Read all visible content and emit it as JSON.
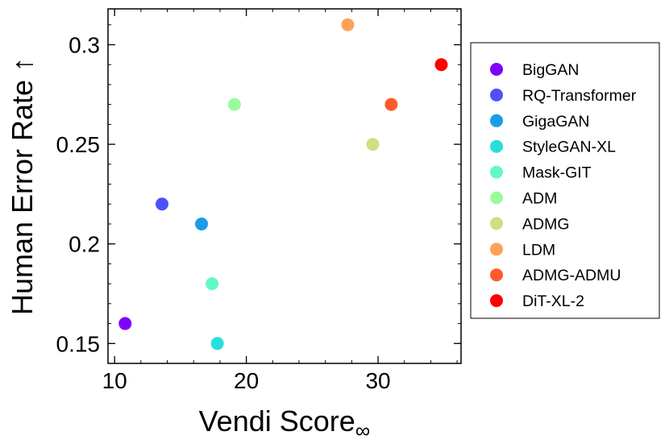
{
  "chart_data": {
    "type": "scatter",
    "xlabel_main": "Vendi Score",
    "xlabel_sub": "∞",
    "ylabel": "Human Error Rate ↑",
    "xlim": [
      9.5,
      36.3
    ],
    "ylim": [
      0.14,
      0.318
    ],
    "x_ticks": [
      {
        "value": 10,
        "label": "10"
      },
      {
        "value": 20,
        "label": "20"
      },
      {
        "value": 30,
        "label": "30"
      }
    ],
    "x_minor_step": 2,
    "y_ticks": [
      {
        "value": 0.15,
        "label": "0.15"
      },
      {
        "value": 0.2,
        "label": "0.2"
      },
      {
        "value": 0.25,
        "label": "0.25"
      },
      {
        "value": 0.3,
        "label": "0.3"
      }
    ],
    "y_minor_step": 0.01,
    "grid": false,
    "legend_position": "right-outside",
    "series": [
      {
        "name": "BigGAN",
        "color": "#7f00ff",
        "x": 10.8,
        "y": 0.16
      },
      {
        "name": "RQ-Transformer",
        "color": "#4d52f8",
        "x": 13.6,
        "y": 0.22
      },
      {
        "name": "GigaGAN",
        "color": "#1a9ce8",
        "x": 16.6,
        "y": 0.21
      },
      {
        "name": "StyleGAN-XL",
        "color": "#2adddd",
        "x": 17.8,
        "y": 0.15
      },
      {
        "name": "Mask-GIT",
        "color": "#62f9c6",
        "x": 17.4,
        "y": 0.18
      },
      {
        "name": "ADM",
        "color": "#9afb9e",
        "x": 19.1,
        "y": 0.27
      },
      {
        "name": "ADMG",
        "color": "#d4dd80",
        "x": 29.6,
        "y": 0.25
      },
      {
        "name": "LDM",
        "color": "#ffa256",
        "x": 27.7,
        "y": 0.31
      },
      {
        "name": "ADMG-ADMU",
        "color": "#ff5a2c",
        "x": 31.0,
        "y": 0.27
      },
      {
        "name": "DiT-XL-2",
        "color": "#ff0000",
        "x": 34.8,
        "y": 0.29
      }
    ]
  }
}
